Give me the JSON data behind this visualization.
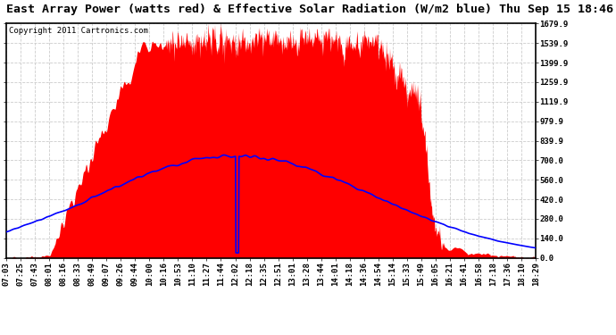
{
  "title": "East Array Power (watts red) & Effective Solar Radiation (W/m2 blue) Thu Sep 15 18:46",
  "copyright": "Copyright 2011 Cartronics.com",
  "ylabel_right_ticks": [
    0.0,
    140.0,
    280.0,
    420.0,
    560.0,
    700.0,
    839.9,
    979.9,
    1119.9,
    1259.9,
    1399.9,
    1539.9,
    1679.9
  ],
  "ylim": [
    0.0,
    1679.9
  ],
  "x_labels": [
    "07:03",
    "07:25",
    "07:43",
    "08:01",
    "08:16",
    "08:33",
    "08:49",
    "09:07",
    "09:26",
    "09:44",
    "10:00",
    "10:16",
    "10:53",
    "11:10",
    "11:27",
    "11:44",
    "12:02",
    "12:18",
    "12:35",
    "12:51",
    "13:01",
    "13:28",
    "13:44",
    "14:01",
    "14:18",
    "14:36",
    "14:54",
    "15:14",
    "15:33",
    "15:49",
    "16:05",
    "16:21",
    "16:41",
    "16:58",
    "17:18",
    "17:36",
    "18:10",
    "18:29"
  ],
  "background_color": "#ffffff",
  "fill_color_red": "#ff0000",
  "line_color_blue": "#0000ff",
  "grid_color": "#cccccc",
  "title_fontsize": 9.5,
  "copyright_fontsize": 6.5,
  "tick_fontsize": 6.5
}
